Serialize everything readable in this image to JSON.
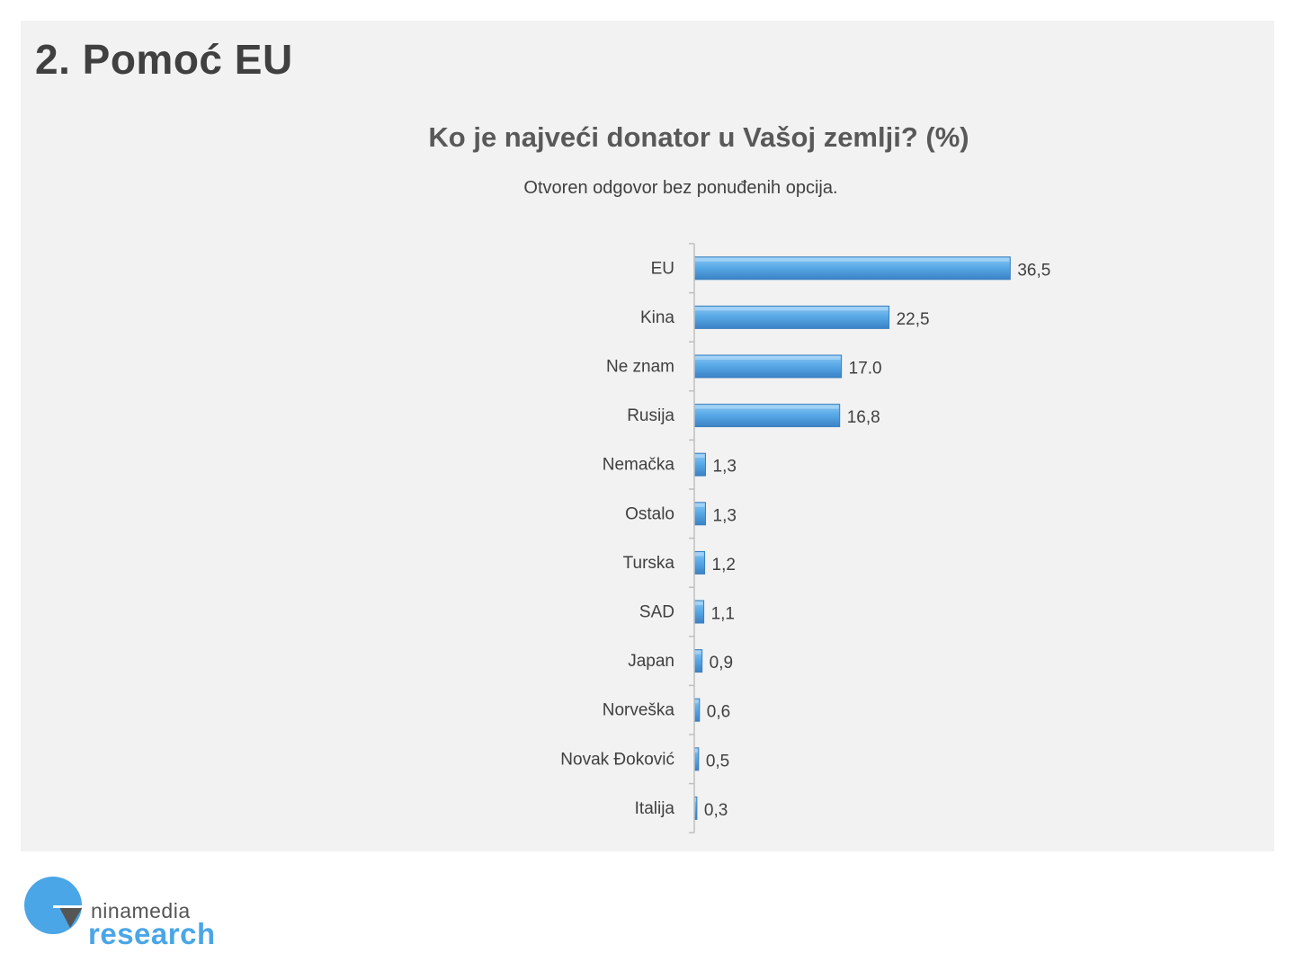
{
  "slide": {
    "title": "2. Pomoć EU"
  },
  "logo": {
    "word1": "ninamedia",
    "word2": "research",
    "colors": {
      "circle": "#4aa6e6",
      "wedge": "#555555"
    }
  },
  "chart_data": {
    "type": "bar",
    "orientation": "horizontal",
    "title": "Ko je najveći donator u Vašoj zemlji? (%)",
    "subtitle": "Otvoren odgovor bez ponuđenih opcija.",
    "categories": [
      "EU",
      "Kina",
      "Ne znam",
      "Rusija",
      "Nemačka",
      "Ostalo",
      "Turska",
      "SAD",
      "Japan",
      "Norveška",
      "Novak Đoković",
      "Italija"
    ],
    "values": [
      36.5,
      22.5,
      17.0,
      16.8,
      1.3,
      1.3,
      1.2,
      1.1,
      0.9,
      0.6,
      0.5,
      0.3
    ],
    "value_labels": [
      "36,5",
      "22,5",
      "17.0",
      "16,8",
      "1,3",
      "1,3",
      "1,2",
      "1,1",
      "0,9",
      "0,6",
      "0,5",
      "0,3"
    ],
    "xlim": [
      0,
      40
    ],
    "grid": false,
    "legend": "none",
    "bar_color": "#5aaae8"
  }
}
